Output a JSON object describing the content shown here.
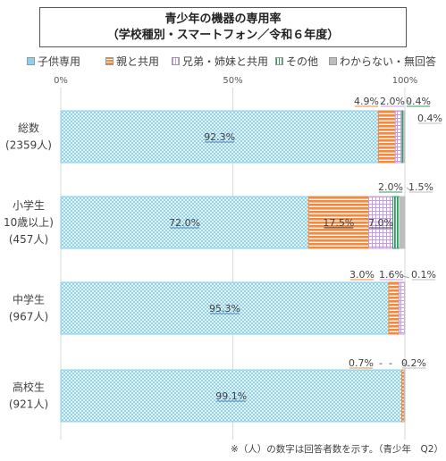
{
  "title": {
    "line1": "青少年の機器の専用率",
    "line2": "（学校種別・スマートフォン／令和６年度）"
  },
  "footnote": "※（人）の数字は回答者数を示す。（青少年　Q2）",
  "chart_data": {
    "type": "bar",
    "orientation": "horizontal",
    "stacked": true,
    "xlim": [
      0,
      100
    ],
    "x_tick_labels": [
      "0%",
      "50%",
      "100%"
    ],
    "legend_position": "top",
    "categories": [
      [
        "総数",
        "(2359人)"
      ],
      [
        "小学生",
        "10歳以上)",
        "(457人)"
      ],
      [
        "中学生",
        "(967人)"
      ],
      [
        "高校生",
        "(921人)"
      ]
    ],
    "series": [
      {
        "name": "子供専用",
        "values": [
          92.3,
          72.0,
          95.3,
          99.1
        ],
        "labels": [
          "92.3%",
          "72.0%",
          "95.3%",
          "99.1%"
        ],
        "color": "#8ad3ea",
        "pattern": "dots-blue"
      },
      {
        "name": "親と共用",
        "values": [
          4.9,
          17.5,
          3.0,
          0.7
        ],
        "labels": [
          "4.9%",
          "17.5%",
          "3.0%",
          "0.7%"
        ],
        "color": "#f08a3c",
        "pattern": "hstripes-orange"
      },
      {
        "name": "兄弟・姉妹と共用",
        "values": [
          2.0,
          7.0,
          1.6,
          0.0
        ],
        "labels": [
          "2.0%",
          "7.0%",
          "1.6%",
          "-"
        ],
        "color": "#c79ce0",
        "pattern": "grid-purple"
      },
      {
        "name": "その他",
        "values": [
          0.4,
          2.0,
          0.0,
          0.0
        ],
        "labels": [
          "0.4%",
          "2.0%",
          "-",
          "-"
        ],
        "color": "#2e9e63",
        "pattern": "vstripes-green"
      },
      {
        "name": "わからない・無回答",
        "values": [
          0.4,
          1.5,
          0.1,
          0.2
        ],
        "labels": [
          "0.4%",
          "1.5%",
          "0.1%",
          "0.2%"
        ],
        "color": "#bdbdbd",
        "pattern": "solid-gray"
      }
    ]
  }
}
